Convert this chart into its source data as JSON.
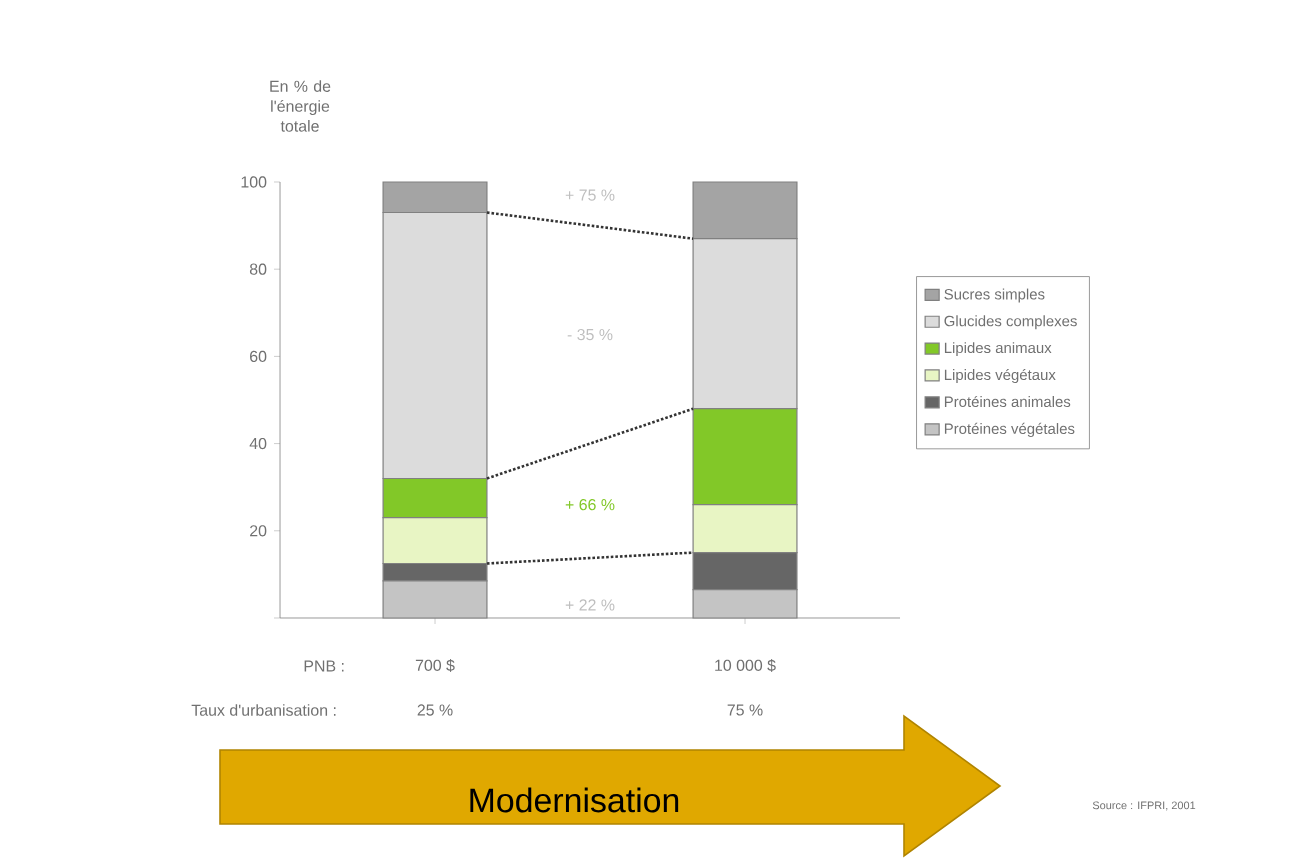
{
  "chart_data": {
    "type": "bar",
    "stacked": true,
    "ylabel": "En % de l'énergie totale",
    "categories": [
      "700 $",
      "10 000 $"
    ],
    "series": [
      {
        "name": "Protéines végétales",
        "color": "#c4c4c4",
        "values": [
          8.5,
          6.5
        ]
      },
      {
        "name": "Protéines animales",
        "color": "#666666",
        "values": [
          4,
          8.5
        ]
      },
      {
        "name": "Lipides végétaux",
        "color": "#e8f5c4",
        "values": [
          10.5,
          11
        ]
      },
      {
        "name": "Lipides animaux",
        "color": "#82c828",
        "values": [
          9,
          22
        ]
      },
      {
        "name": "Glucides complexes",
        "color": "#dcdcdc",
        "values": [
          61,
          39
        ]
      },
      {
        "name": "Sucres simples",
        "color": "#a4a4a4",
        "values": [
          7,
          13
        ]
      }
    ],
    "ylim": [
      0,
      100
    ],
    "yticks": [
      {
        "value": 0,
        "label": null
      },
      20,
      40,
      60,
      80,
      100
    ],
    "legend": "right",
    "annotations": [
      "+ 75 %",
      "- 35 %",
      "+ 66 %",
      "+ 22 %",
      "PNB :",
      "Taux d'urbanisation :",
      "25 %",
      "75 %",
      "Modernisation",
      "Source : IFPRI, 2001"
    ]
  }
}
